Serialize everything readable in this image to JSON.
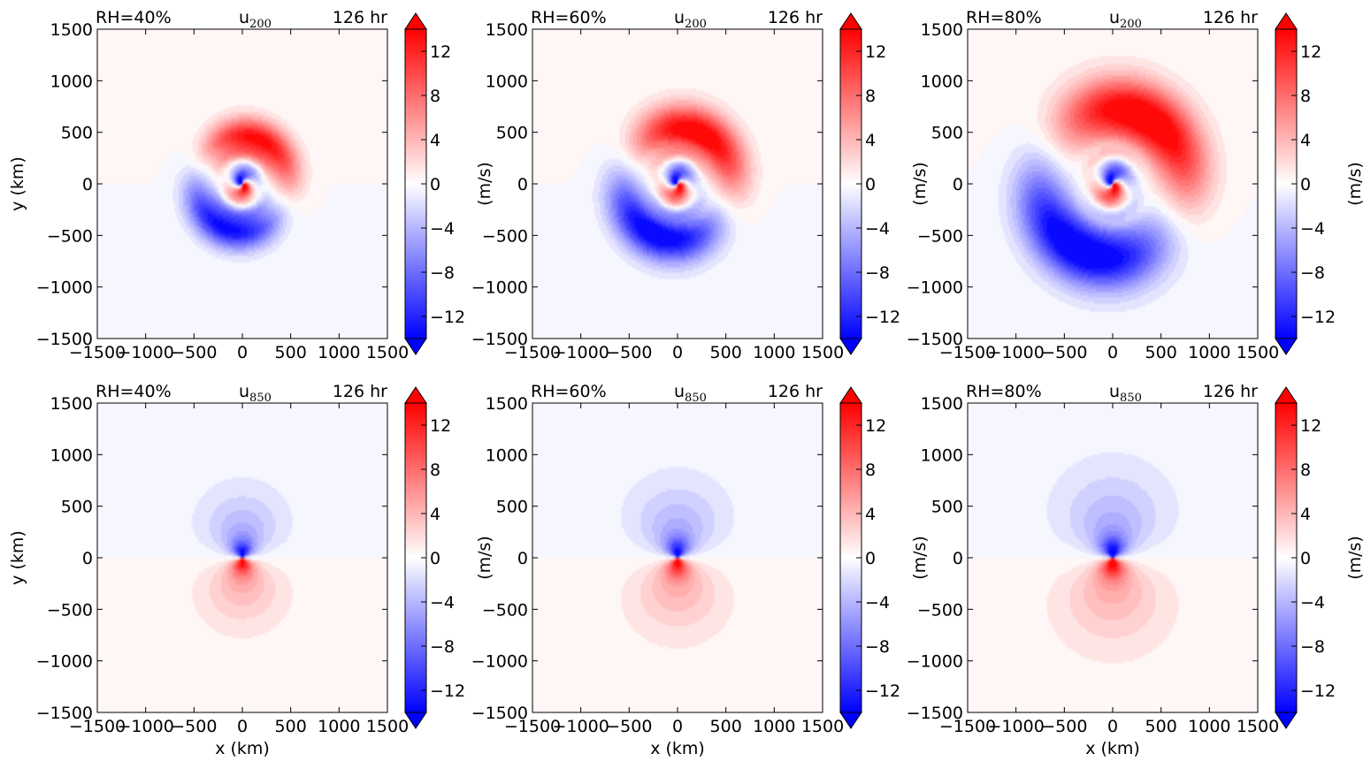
{
  "chart_data": [
    {
      "type": "heatmap",
      "field": "u",
      "level": "200",
      "rh_label": "RH=40%",
      "time_label": "126 hr",
      "xlabel": "",
      "ylabel": "y (km)",
      "colorbar_label": "(m/s)",
      "xlim": [
        -1500,
        1500
      ],
      "ylim": [
        -1500,
        1500
      ],
      "xticks": [
        -1500,
        -1000,
        -500,
        0,
        500,
        1000,
        1500
      ],
      "yticks": [
        -1500,
        -1000,
        -500,
        0,
        500,
        1000,
        1500
      ],
      "colorbar_ticks": [
        -12,
        -8,
        -4,
        0,
        4,
        8,
        12
      ],
      "colorbar_range": [
        -14,
        14
      ],
      "features": {
        "north_jet_max": 14,
        "south_jet_min": -14,
        "core_radius_km": 100,
        "jet_radius_km": 450,
        "spiral": 1.0
      }
    },
    {
      "type": "heatmap",
      "field": "u",
      "level": "200",
      "rh_label": "RH=60%",
      "time_label": "126 hr",
      "xlabel": "",
      "ylabel": "",
      "colorbar_label": "(m/s)",
      "xlim": [
        -1500,
        1500
      ],
      "ylim": [
        -1500,
        1500
      ],
      "xticks": [
        -1500,
        -1000,
        -500,
        0,
        500,
        1000,
        1500
      ],
      "yticks": [
        -1500,
        -1000,
        -500,
        0,
        500,
        1000,
        1500
      ],
      "colorbar_ticks": [
        -12,
        -8,
        -4,
        0,
        4,
        8,
        12
      ],
      "colorbar_range": [
        -14,
        14
      ],
      "features": {
        "north_jet_max": 15,
        "south_jet_min": -15,
        "core_radius_km": 110,
        "jet_radius_km": 540,
        "spiral": 1.0
      }
    },
    {
      "type": "heatmap",
      "field": "u",
      "level": "200",
      "rh_label": "RH=80%",
      "time_label": "126 hr",
      "xlabel": "",
      "ylabel": "",
      "colorbar_label": "(m/s)",
      "xlim": [
        -1500,
        1500
      ],
      "ylim": [
        -1500,
        1500
      ],
      "xticks": [
        -1500,
        -1000,
        -500,
        0,
        500,
        1000,
        1500
      ],
      "yticks": [
        -1500,
        -1000,
        -500,
        0,
        500,
        1000,
        1500
      ],
      "colorbar_ticks": [
        -12,
        -8,
        -4,
        0,
        4,
        8,
        12
      ],
      "colorbar_range": [
        -14,
        14
      ],
      "features": {
        "north_jet_max": 16,
        "south_jet_min": -16,
        "core_radius_km": 120,
        "jet_radius_km": 720,
        "spiral": 1.0
      }
    },
    {
      "type": "heatmap",
      "field": "u",
      "level": "850",
      "rh_label": "RH=40%",
      "time_label": "126 hr",
      "xlabel": "x (km)",
      "ylabel": "y (km)",
      "colorbar_label": "(m/s)",
      "xlim": [
        -1500,
        1500
      ],
      "ylim": [
        -1500,
        1500
      ],
      "xticks": [
        -1500,
        -1000,
        -500,
        0,
        500,
        1000,
        1500
      ],
      "yticks": [
        -1500,
        -1000,
        -500,
        0,
        500,
        1000,
        1500
      ],
      "colorbar_ticks": [
        -12,
        -8,
        -4,
        0,
        4,
        8,
        12
      ],
      "colorbar_range": [
        -14,
        14
      ],
      "features": {
        "core_max": 15,
        "core_radius_km": 110,
        "outer_radius_km": 550
      }
    },
    {
      "type": "heatmap",
      "field": "u",
      "level": "850",
      "rh_label": "RH=60%",
      "time_label": "126 hr",
      "xlabel": "x (km)",
      "ylabel": "",
      "colorbar_label": "(m/s)",
      "xlim": [
        -1500,
        1500
      ],
      "ylim": [
        -1500,
        1500
      ],
      "xticks": [
        -1500,
        -1000,
        -500,
        0,
        500,
        1000,
        1500
      ],
      "yticks": [
        -1500,
        -1000,
        -500,
        0,
        500,
        1000,
        1500
      ],
      "colorbar_ticks": [
        -12,
        -8,
        -4,
        0,
        4,
        8,
        12
      ],
      "colorbar_range": [
        -14,
        14
      ],
      "features": {
        "core_max": 15,
        "core_radius_km": 120,
        "outer_radius_km": 620
      }
    },
    {
      "type": "heatmap",
      "field": "u",
      "level": "850",
      "rh_label": "RH=80%",
      "time_label": "126 hr",
      "xlabel": "x (km)",
      "ylabel": "",
      "colorbar_label": "(m/s)",
      "xlim": [
        -1500,
        1500
      ],
      "ylim": [
        -1500,
        1500
      ],
      "xticks": [
        -1500,
        -1000,
        -500,
        0,
        500,
        1000,
        1500
      ],
      "yticks": [
        -1500,
        -1000,
        -500,
        0,
        500,
        1000,
        1500
      ],
      "colorbar_ticks": [
        -12,
        -8,
        -4,
        0,
        4,
        8,
        12
      ],
      "colorbar_range": [
        -14,
        14
      ],
      "features": {
        "core_max": 16,
        "core_radius_km": 130,
        "outer_radius_km": 720
      }
    }
  ],
  "colors": {
    "negative": "#0000ff",
    "zero": "#ffffff",
    "positive": "#ff0000",
    "frame": "#000000"
  }
}
